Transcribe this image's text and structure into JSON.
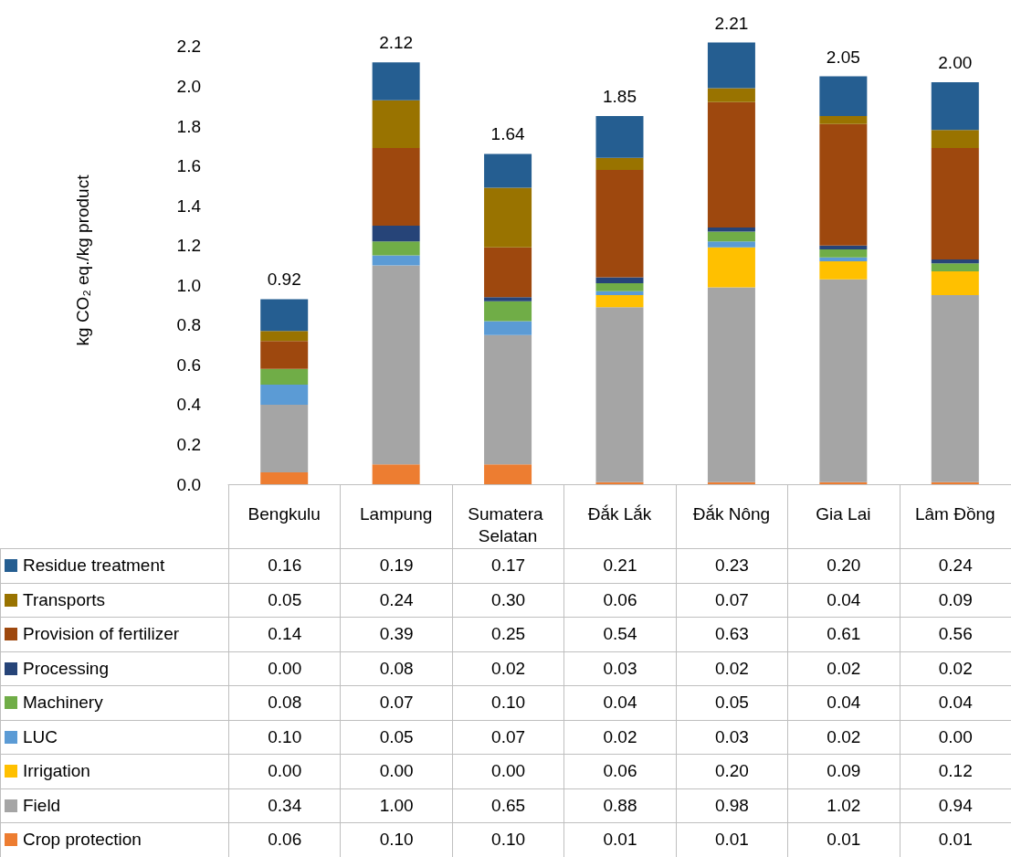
{
  "chart_data": {
    "type": "bar",
    "stacked": true,
    "ylabel": "kg CO₂ eq./kg product",
    "categories": [
      "Bengkulu",
      "Lampung",
      "Sumatera Selatan",
      "Đắk Lắk",
      "Đắk Nông",
      "Gia Lai",
      "Lâm Đồng"
    ],
    "series": [
      {
        "name": "Crop protection",
        "color": "#ed7d31",
        "values": [
          0.06,
          0.1,
          0.1,
          0.01,
          0.01,
          0.01,
          0.01
        ],
        "value_labels": [
          "0.06",
          "0.10",
          "0.10",
          "0.01",
          "0.01",
          "0.01",
          "0.01"
        ]
      },
      {
        "name": "Field",
        "color": "#a5a5a5",
        "values": [
          0.34,
          1.0,
          0.65,
          0.88,
          0.98,
          1.02,
          0.94
        ],
        "value_labels": [
          "0.34",
          "1.00",
          "0.65",
          "0.88",
          "0.98",
          "1.02",
          "0.94"
        ]
      },
      {
        "name": "Irrigation",
        "color": "#ffc000",
        "values": [
          0.0,
          0.0,
          0.0,
          0.06,
          0.2,
          0.09,
          0.12
        ],
        "value_labels": [
          "0.00",
          "0.00",
          "0.00",
          "0.06",
          "0.20",
          "0.09",
          "0.12"
        ]
      },
      {
        "name": "LUC",
        "color": "#5b9bd5",
        "values": [
          0.1,
          0.05,
          0.07,
          0.02,
          0.03,
          0.02,
          0.0
        ],
        "value_labels": [
          "0.10",
          "0.05",
          "0.07",
          "0.02",
          "0.03",
          "0.02",
          "0.00"
        ]
      },
      {
        "name": "Machinery",
        "color": "#70ad47",
        "values": [
          0.08,
          0.07,
          0.1,
          0.04,
          0.05,
          0.04,
          0.04
        ],
        "value_labels": [
          "0.08",
          "0.07",
          "0.10",
          "0.04",
          "0.05",
          "0.04",
          "0.04"
        ]
      },
      {
        "name": "Processing",
        "color": "#264478",
        "values": [
          0.0,
          0.08,
          0.02,
          0.03,
          0.02,
          0.02,
          0.02
        ],
        "value_labels": [
          "0.00",
          "0.08",
          "0.02",
          "0.03",
          "0.02",
          "0.02",
          "0.02"
        ]
      },
      {
        "name": "Provision of fertilizer",
        "color": "#9e480e",
        "values": [
          0.14,
          0.39,
          0.25,
          0.54,
          0.63,
          0.61,
          0.56
        ],
        "value_labels": [
          "0.14",
          "0.39",
          "0.25",
          "0.54",
          "0.63",
          "0.61",
          "0.56"
        ]
      },
      {
        "name": "Transports",
        "color": "#997300",
        "values": [
          0.05,
          0.24,
          0.3,
          0.06,
          0.07,
          0.04,
          0.09
        ],
        "value_labels": [
          "0.05",
          "0.24",
          "0.30",
          "0.06",
          "0.07",
          "0.04",
          "0.09"
        ]
      },
      {
        "name": "Residue treatment",
        "color": "#255e91",
        "values": [
          0.16,
          0.19,
          0.17,
          0.21,
          0.23,
          0.2,
          0.24
        ],
        "value_labels": [
          "0.16",
          "0.19",
          "0.17",
          "0.21",
          "0.23",
          "0.20",
          "0.24"
        ]
      }
    ],
    "totals": [
      "0.92",
      "2.12",
      "1.64",
      "1.85",
      "2.21",
      "2.05",
      "2.00"
    ],
    "legend": "bottom left",
    "grid": false,
    "ylim": [
      0,
      2.25
    ],
    "yticks": [
      {
        "value": 0,
        "label": "0.0"
      },
      0.2,
      0.4,
      0.6,
      0.8,
      {
        "value": 1,
        "label": "1.0"
      },
      1.2,
      1.4,
      1.6,
      1.8,
      {
        "value": 2,
        "label": "2.0"
      },
      2.2
    ]
  }
}
